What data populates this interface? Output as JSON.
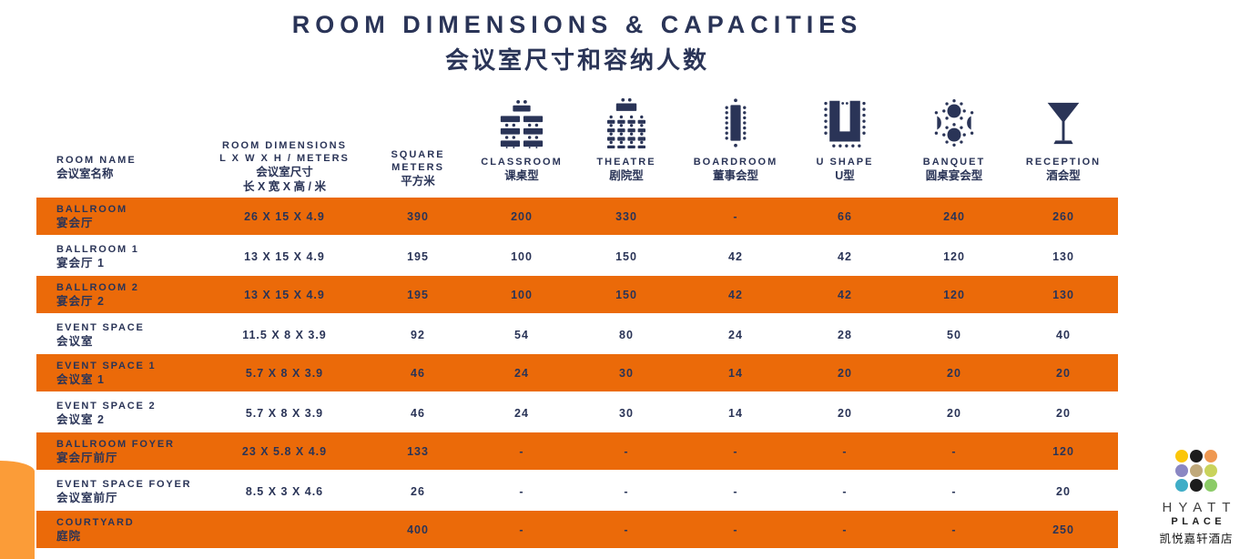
{
  "page": {
    "title_en": "ROOM DIMENSIONS & CAPACITIES",
    "title_zh": "会议室尺寸和容纳人数"
  },
  "colors": {
    "navy": "#2A3457",
    "orange_row": "#EB6A09",
    "corner_accent": "#FB9C38"
  },
  "header": {
    "room_name": {
      "en": "ROOM NAME",
      "zh": "会议室名称"
    },
    "dimensions": {
      "en1": "ROOM DIMENSIONS",
      "en2": "L X W X H / METERS",
      "zh1": "会议室尺寸",
      "zh2": "长 X 宽 X 高 / 米"
    },
    "sqm": {
      "en": "SQUARE METERS",
      "zh": "平方米"
    },
    "capacity": [
      {
        "en": "CLASSROOM",
        "zh": "课桌型",
        "icon": "classroom-icon"
      },
      {
        "en": "THEATRE",
        "zh": "剧院型",
        "icon": "theatre-icon"
      },
      {
        "en": "BOARDROOM",
        "zh": "董事会型",
        "icon": "boardroom-icon"
      },
      {
        "en": "U SHAPE",
        "zh": "U型",
        "icon": "u-shape-icon"
      },
      {
        "en": "BANQUET",
        "zh": "圆桌宴会型",
        "icon": "banquet-icon"
      },
      {
        "en": "RECEPTION",
        "zh": "酒会型",
        "icon": "reception-icon"
      }
    ]
  },
  "rows": [
    {
      "name_en": "BALLROOM",
      "name_zh": "宴会厅",
      "dimensions": "26 X 15 X 4.9",
      "sqm": "390",
      "classroom": "200",
      "theatre": "330",
      "boardroom": "-",
      "ushape": "66",
      "banquet": "240",
      "reception": "260",
      "highlight": true
    },
    {
      "name_en": "BALLROOM 1",
      "name_zh": "宴会厅 1",
      "dimensions": "13 X 15 X 4.9",
      "sqm": "195",
      "classroom": "100",
      "theatre": "150",
      "boardroom": "42",
      "ushape": "42",
      "banquet": "120",
      "reception": "130",
      "highlight": false
    },
    {
      "name_en": "BALLROOM 2",
      "name_zh": "宴会厅 2",
      "dimensions": "13 X 15 X 4.9",
      "sqm": "195",
      "classroom": "100",
      "theatre": "150",
      "boardroom": "42",
      "ushape": "42",
      "banquet": "120",
      "reception": "130",
      "highlight": true
    },
    {
      "name_en": "EVENT SPACE",
      "name_zh": "会议室",
      "dimensions": "11.5 X 8 X 3.9",
      "sqm": "92",
      "classroom": "54",
      "theatre": "80",
      "boardroom": "24",
      "ushape": "28",
      "banquet": "50",
      "reception": "40",
      "highlight": false
    },
    {
      "name_en": "EVENT SPACE 1",
      "name_zh": "会议室 1",
      "dimensions": "5.7 X 8 X 3.9",
      "sqm": "46",
      "classroom": "24",
      "theatre": "30",
      "boardroom": "14",
      "ushape": "20",
      "banquet": "20",
      "reception": "20",
      "highlight": true
    },
    {
      "name_en": "EVENT SPACE 2",
      "name_zh": "会议室 2",
      "dimensions": "5.7 X 8 X 3.9",
      "sqm": "46",
      "classroom": "24",
      "theatre": "30",
      "boardroom": "14",
      "ushape": "20",
      "banquet": "20",
      "reception": "20",
      "highlight": false
    },
    {
      "name_en": "BALLROOM FOYER",
      "name_zh": "宴会厅前厅",
      "dimensions": "23 X 5.8 X 4.9",
      "sqm": "133",
      "classroom": "-",
      "theatre": "-",
      "boardroom": "-",
      "ushape": "-",
      "banquet": "-",
      "reception": "120",
      "highlight": true
    },
    {
      "name_en": "EVENT SPACE FOYER",
      "name_zh": "会议室前厅",
      "dimensions": "8.5 X 3 X 4.6",
      "sqm": "26",
      "classroom": "-",
      "theatre": "-",
      "boardroom": "-",
      "ushape": "-",
      "banquet": "-",
      "reception": "20",
      "highlight": false
    },
    {
      "name_en": "COURTYARD",
      "name_zh": "庭院",
      "dimensions": "",
      "sqm": "400",
      "classroom": "-",
      "theatre": "-",
      "boardroom": "-",
      "ushape": "-",
      "banquet": "-",
      "reception": "250",
      "highlight": true
    }
  ],
  "logo": {
    "brand_top": "HYATT",
    "brand_sub": "PLACE",
    "brand_zh": "凯悦嘉轩酒店",
    "dots": [
      "#FBC60A",
      "#1C1C1C",
      "#EF9851",
      "#8A87C3",
      "#C0A97B",
      "#C9D35B",
      "#3FADC7",
      "#1C1C1C",
      "#8BCB67"
    ]
  }
}
